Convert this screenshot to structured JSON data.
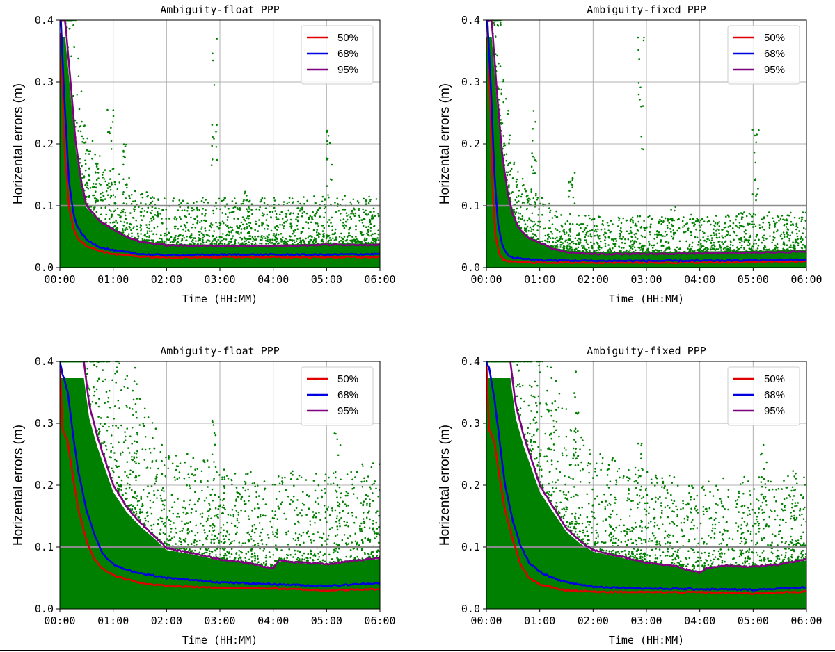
{
  "figure": {
    "bottom_rule_color": "#000000"
  },
  "chart_data": [
    {
      "type": "scatter",
      "title": "Ambiguity-float PPP",
      "xlabel": "Time (HH:MM)",
      "ylabel": "Horizental errors (m)",
      "x_ticks": [
        "00:00",
        "01:00",
        "02:00",
        "03:00",
        "04:00",
        "05:00",
        "06:00"
      ],
      "y_ticks": [
        "0.0",
        "0.1",
        "0.2",
        "0.3",
        "0.4"
      ],
      "xlim": [
        0,
        6
      ],
      "ylim": [
        0,
        0.4
      ],
      "grid": true,
      "legend_position": "top-right",
      "reference_line": {
        "y": 0.1,
        "color": "#8c8c8c"
      },
      "scatter": {
        "color": "#008000",
        "core_max": 0.06,
        "spread": 0.05,
        "spikes": [
          [
            0.95,
            0.26
          ],
          [
            1.25,
            0.2
          ],
          [
            2.9,
            0.36
          ],
          [
            3.5,
            0.12
          ],
          [
            4.5,
            0.1
          ],
          [
            5.05,
            0.22
          ]
        ]
      },
      "series": [
        {
          "name": "50%",
          "color": "#e00000",
          "x": [
            0.02,
            0.08,
            0.17,
            0.25,
            0.33,
            0.5,
            0.75,
            1,
            1.5,
            2,
            3,
            4,
            5,
            6
          ],
          "values": [
            0.38,
            0.2,
            0.1,
            0.065,
            0.048,
            0.035,
            0.027,
            0.022,
            0.018,
            0.016,
            0.017,
            0.017,
            0.017,
            0.017
          ]
        },
        {
          "name": "68%",
          "color": "#0000e0",
          "x": [
            0.02,
            0.08,
            0.17,
            0.25,
            0.33,
            0.5,
            0.75,
            1,
            1.5,
            2,
            3,
            4,
            5,
            6
          ],
          "values": [
            0.4,
            0.28,
            0.14,
            0.09,
            0.065,
            0.045,
            0.033,
            0.028,
            0.022,
            0.02,
            0.021,
            0.021,
            0.021,
            0.022
          ]
        },
        {
          "name": "95%",
          "color": "#800080",
          "x": [
            0.02,
            0.1,
            0.2,
            0.3,
            0.4,
            0.5,
            0.75,
            1,
            1.25,
            1.5,
            2,
            3,
            4,
            5,
            6
          ],
          "values": [
            0.4,
            0.4,
            0.3,
            0.2,
            0.14,
            0.1,
            0.075,
            0.062,
            0.05,
            0.042,
            0.036,
            0.035,
            0.035,
            0.037,
            0.037
          ]
        }
      ]
    },
    {
      "type": "scatter",
      "title": "Ambiguity-fixed PPP",
      "xlabel": "Time (HH:MM)",
      "ylabel": "Horizental errors (m)",
      "x_ticks": [
        "00:00",
        "01:00",
        "02:00",
        "03:00",
        "04:00",
        "05:00",
        "06:00"
      ],
      "y_ticks": [
        "0.0",
        "0.1",
        "0.2",
        "0.3",
        "0.4"
      ],
      "xlim": [
        0,
        6
      ],
      "ylim": [
        0,
        0.4
      ],
      "grid": true,
      "legend_position": "top-right",
      "reference_line": {
        "y": 0.1,
        "color": "#8c8c8c"
      },
      "scatter": {
        "color": "#008000",
        "core_max": 0.05,
        "spread": 0.045,
        "spikes": [
          [
            0.9,
            0.26
          ],
          [
            1.6,
            0.15
          ],
          [
            2.9,
            0.37
          ],
          [
            3.5,
            0.11
          ],
          [
            4.8,
            0.09
          ],
          [
            5.05,
            0.22
          ]
        ]
      },
      "series": [
        {
          "name": "50%",
          "color": "#e00000",
          "x": [
            0.02,
            0.06,
            0.12,
            0.17,
            0.25,
            0.33,
            0.5,
            1,
            2,
            3,
            4,
            5,
            6
          ],
          "values": [
            0.4,
            0.3,
            0.12,
            0.05,
            0.02,
            0.012,
            0.009,
            0.008,
            0.008,
            0.008,
            0.008,
            0.009,
            0.01
          ]
        },
        {
          "name": "68%",
          "color": "#0000e0",
          "x": [
            0.02,
            0.08,
            0.15,
            0.22,
            0.3,
            0.4,
            0.5,
            0.75,
            1,
            2,
            3,
            4,
            5,
            6
          ],
          "values": [
            0.4,
            0.3,
            0.15,
            0.07,
            0.035,
            0.02,
            0.016,
            0.014,
            0.012,
            0.011,
            0.011,
            0.011,
            0.012,
            0.013
          ]
        },
        {
          "name": "95%",
          "color": "#800080",
          "x": [
            0.02,
            0.1,
            0.2,
            0.3,
            0.4,
            0.5,
            0.6,
            0.75,
            1,
            1.25,
            1.5,
            2,
            3,
            4,
            5,
            6
          ],
          "values": [
            0.4,
            0.4,
            0.28,
            0.18,
            0.12,
            0.085,
            0.065,
            0.05,
            0.04,
            0.03,
            0.025,
            0.022,
            0.022,
            0.023,
            0.024,
            0.026
          ]
        }
      ]
    },
    {
      "type": "scatter",
      "title": "Ambiguity-float PPP",
      "xlabel": "Time (HH:MM)",
      "ylabel": "Horizental errors (m)",
      "x_ticks": [
        "00:00",
        "01:00",
        "02:00",
        "03:00",
        "04:00",
        "05:00",
        "06:00"
      ],
      "y_ticks": [
        "0.0",
        "0.1",
        "0.2",
        "0.3",
        "0.4"
      ],
      "xlim": [
        0,
        6
      ],
      "ylim": [
        0,
        0.4
      ],
      "grid": true,
      "legend_position": "top-right",
      "reference_line": {
        "y": 0.1,
        "color": "#8c8c8c"
      },
      "scatter": {
        "color": "#008000",
        "core_max": 0.11,
        "spread": 0.09,
        "spikes": [
          [
            1.4,
            0.4
          ],
          [
            2.9,
            0.3
          ],
          [
            3.1,
            0.21
          ],
          [
            5.2,
            0.28
          ],
          [
            5.7,
            0.24
          ]
        ]
      },
      "series": [
        {
          "name": "50%",
          "color": "#e00000",
          "x": [
            0,
            0.05,
            0.15,
            0.25,
            0.35,
            0.5,
            0.65,
            0.8,
            1,
            1.25,
            1.5,
            2,
            3,
            4,
            5,
            6
          ],
          "values": [
            0.4,
            0.29,
            0.27,
            0.21,
            0.16,
            0.11,
            0.08,
            0.065,
            0.055,
            0.048,
            0.042,
            0.037,
            0.034,
            0.033,
            0.03,
            0.032
          ]
        },
        {
          "name": "68%",
          "color": "#0000e0",
          "x": [
            0,
            0.05,
            0.15,
            0.25,
            0.35,
            0.5,
            0.65,
            0.8,
            1,
            1.25,
            1.5,
            2,
            3,
            4,
            5,
            6
          ],
          "values": [
            0.4,
            0.38,
            0.35,
            0.28,
            0.22,
            0.16,
            0.12,
            0.09,
            0.072,
            0.063,
            0.058,
            0.05,
            0.043,
            0.04,
            0.037,
            0.042
          ]
        },
        {
          "name": "95%",
          "color": "#800080",
          "x": [
            0.45,
            0.55,
            0.7,
            0.85,
            1,
            1.25,
            1.5,
            1.75,
            2,
            2.5,
            3,
            3.5,
            4,
            4.1,
            4.5,
            5,
            5.5,
            6
          ],
          "values": [
            0.4,
            0.33,
            0.28,
            0.24,
            0.2,
            0.165,
            0.14,
            0.12,
            0.098,
            0.09,
            0.08,
            0.075,
            0.065,
            0.078,
            0.075,
            0.072,
            0.078,
            0.082
          ]
        }
      ]
    },
    {
      "type": "scatter",
      "title": "Ambiguity-fixed PPP",
      "xlabel": "Time (HH:MM)",
      "ylabel": "Horizental errors (m)",
      "x_ticks": [
        "00:00",
        "01:00",
        "02:00",
        "03:00",
        "04:00",
        "05:00",
        "06:00"
      ],
      "y_ticks": [
        "0.0",
        "0.1",
        "0.2",
        "0.3",
        "0.4"
      ],
      "xlim": [
        0,
        6
      ],
      "ylim": [
        0,
        0.4
      ],
      "grid": true,
      "legend_position": "top-right",
      "reference_line": {
        "y": 0.1,
        "color": "#8c8c8c"
      },
      "scatter": {
        "color": "#008000",
        "core_max": 0.1,
        "spread": 0.09,
        "spikes": [
          [
            1.7,
            0.38
          ],
          [
            2.9,
            0.3
          ],
          [
            3.15,
            0.21
          ],
          [
            5.2,
            0.27
          ],
          [
            5.75,
            0.23
          ]
        ]
      },
      "series": [
        {
          "name": "50%",
          "color": "#e00000",
          "x": [
            0,
            0.05,
            0.15,
            0.25,
            0.35,
            0.5,
            0.65,
            0.8,
            1,
            1.25,
            1.5,
            2,
            3,
            4,
            5,
            6
          ],
          "values": [
            0.4,
            0.29,
            0.27,
            0.21,
            0.16,
            0.11,
            0.07,
            0.05,
            0.04,
            0.034,
            0.03,
            0.028,
            0.027,
            0.027,
            0.025,
            0.028
          ]
        },
        {
          "name": "68%",
          "color": "#0000e0",
          "x": [
            0,
            0.05,
            0.15,
            0.25,
            0.35,
            0.5,
            0.65,
            0.8,
            1,
            1.25,
            1.5,
            2,
            3,
            4,
            5,
            6
          ],
          "values": [
            0.4,
            0.39,
            0.34,
            0.27,
            0.2,
            0.14,
            0.1,
            0.075,
            0.06,
            0.05,
            0.043,
            0.036,
            0.033,
            0.032,
            0.031,
            0.035
          ]
        },
        {
          "name": "95%",
          "color": "#800080",
          "x": [
            0.45,
            0.55,
            0.7,
            0.85,
            1,
            1.25,
            1.5,
            1.75,
            2,
            2.5,
            3,
            3.5,
            4,
            4.1,
            4.5,
            5,
            5.5,
            6
          ],
          "values": [
            0.4,
            0.33,
            0.28,
            0.24,
            0.2,
            0.165,
            0.13,
            0.11,
            0.095,
            0.085,
            0.075,
            0.07,
            0.058,
            0.065,
            0.07,
            0.068,
            0.072,
            0.08
          ]
        }
      ]
    }
  ]
}
